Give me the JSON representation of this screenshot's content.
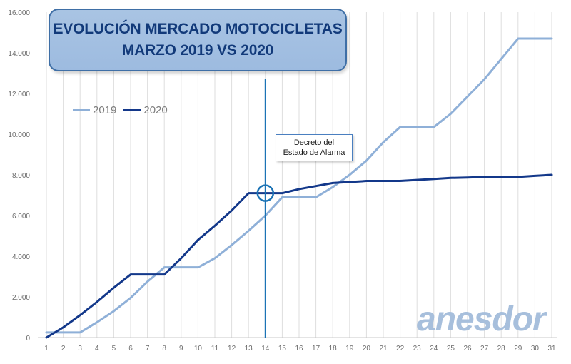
{
  "title": {
    "line1": "EVOLUCIÓN MERCADO MOTOCICLETAS",
    "line2": "MARZO 2019 VS 2020"
  },
  "annotation": {
    "line1": "Decreto del",
    "line2": "Estado de Alarma",
    "day": 14
  },
  "logo_text": "anesdor",
  "colors": {
    "s2019": "#8fb0d8",
    "s2020": "#13388a",
    "marker": "#1b73b5",
    "grid": "#dedede",
    "logo": "#a7bfdc"
  },
  "chart_data": {
    "type": "line",
    "title": "EVOLUCIÓN MERCADO MOTOCICLETAS MARZO 2019 VS 2020",
    "xlabel": "",
    "ylabel": "",
    "x": [
      1,
      2,
      3,
      4,
      5,
      6,
      7,
      8,
      9,
      10,
      11,
      12,
      13,
      14,
      15,
      16,
      17,
      18,
      19,
      20,
      21,
      22,
      23,
      24,
      25,
      26,
      27,
      28,
      29,
      30,
      31
    ],
    "ylim": [
      0,
      16000
    ],
    "yticks": [
      0,
      2000,
      4000,
      6000,
      8000,
      10000,
      12000,
      14000,
      16000
    ],
    "ytick_labels": [
      "0",
      "2.000",
      "4.000",
      "6.000",
      "8.000",
      "10.000",
      "12.000",
      "14.000",
      "16.000"
    ],
    "grid": "vertical",
    "legend_position": "top-left",
    "series": [
      {
        "name": "2019",
        "values": [
          250,
          250,
          250,
          750,
          1300,
          1950,
          2750,
          3450,
          3450,
          3450,
          3900,
          4550,
          5250,
          6000,
          6900,
          6900,
          6900,
          7400,
          8000,
          8700,
          9600,
          10350,
          10350,
          10350,
          11000,
          11850,
          12700,
          13700,
          14700,
          14700,
          14700
        ]
      },
      {
        "name": "2020",
        "values": [
          0,
          500,
          1100,
          1750,
          2450,
          3100,
          3100,
          3100,
          3900,
          4800,
          5500,
          6250,
          7100,
          7100,
          7100,
          7300,
          7450,
          7600,
          7650,
          7700,
          7700,
          7700,
          7750,
          7800,
          7850,
          7870,
          7900,
          7900,
          7900,
          7950,
          8000
        ]
      }
    ]
  }
}
